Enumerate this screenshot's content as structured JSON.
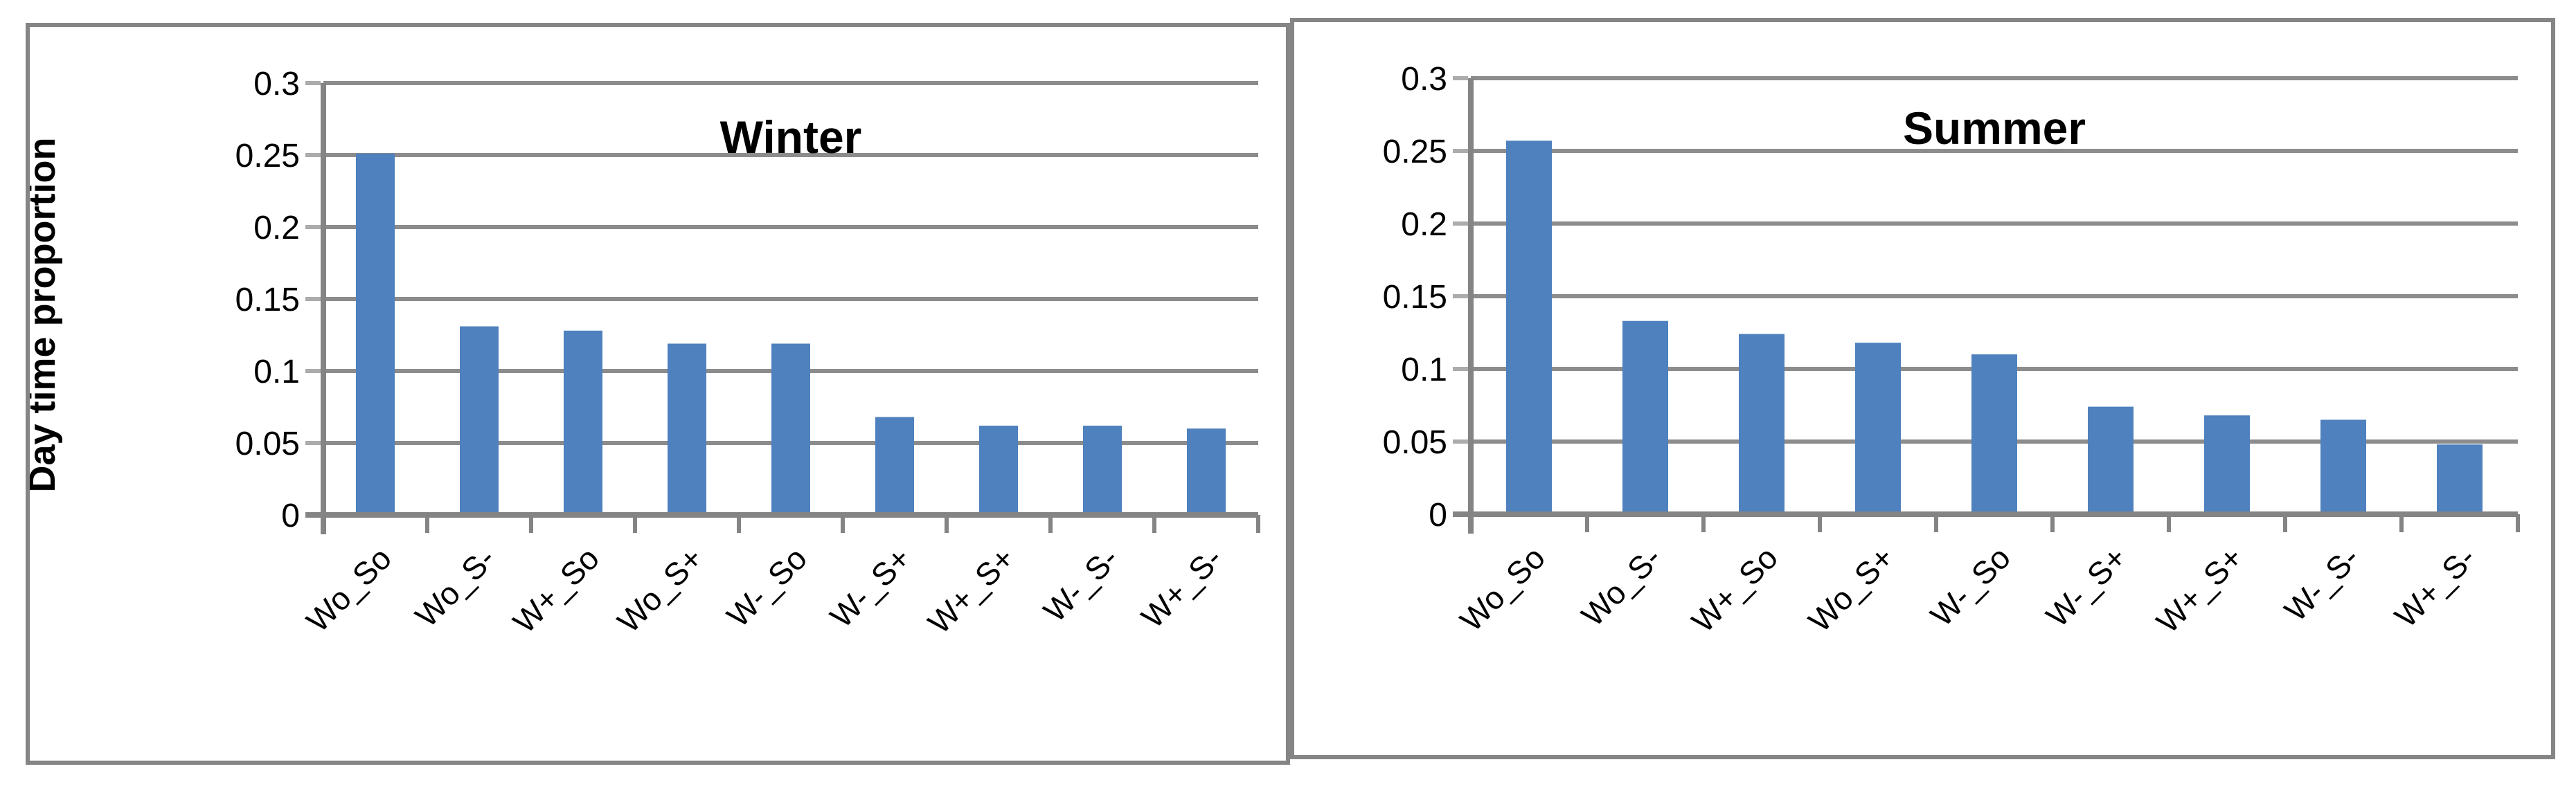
{
  "chart_data": [
    {
      "type": "bar",
      "title": "Winter",
      "ylabel": "Day time proportion",
      "xlabel": "",
      "categories": [
        "Wo_So",
        "Wo_S-",
        "W+_So",
        "Wo_S+",
        "W-_So",
        "W-_S+",
        "W+_S+",
        "W-_S-",
        "W+_S-"
      ],
      "values": [
        0.251,
        0.131,
        0.128,
        0.119,
        0.119,
        0.068,
        0.062,
        0.062,
        0.06
      ],
      "ylim": [
        0,
        0.3
      ],
      "ytick_labels": [
        "0.3",
        "0.25",
        "0.2",
        "0.15",
        "0.1",
        "0.05",
        "0"
      ],
      "ytick_values": [
        0.3,
        0.25,
        0.2,
        0.15,
        0.1,
        0.05,
        0
      ],
      "grid": true,
      "legend": "none",
      "bar_color": "#4E81BD"
    },
    {
      "type": "bar",
      "title": "Summer",
      "ylabel": "",
      "xlabel": "",
      "categories": [
        "Wo_So",
        "Wo_S-",
        "W+_So",
        "Wo_S+",
        "W-_So",
        "W-_S+",
        "W+_S+",
        "W-_S-",
        "W+_S-"
      ],
      "values": [
        0.257,
        0.133,
        0.124,
        0.118,
        0.11,
        0.074,
        0.068,
        0.065,
        0.048
      ],
      "ylim": [
        0,
        0.3
      ],
      "ytick_labels": [
        "0.3",
        "0.25",
        "0.2",
        "0.15",
        "0.1",
        "0.05",
        "0"
      ],
      "ytick_values": [
        0.3,
        0.25,
        0.2,
        0.15,
        0.1,
        0.05,
        0
      ],
      "grid": true,
      "legend": "none",
      "bar_color": "#4E81BD"
    }
  ],
  "style": {
    "bar_color": "#4E81BD",
    "grid_color": "#8C8C8C",
    "axis_color": "#848484",
    "tick_color": "#ACACAC",
    "panel_border_color": "#858585",
    "text_color": "#000000",
    "background": "#FFFFFF"
  }
}
